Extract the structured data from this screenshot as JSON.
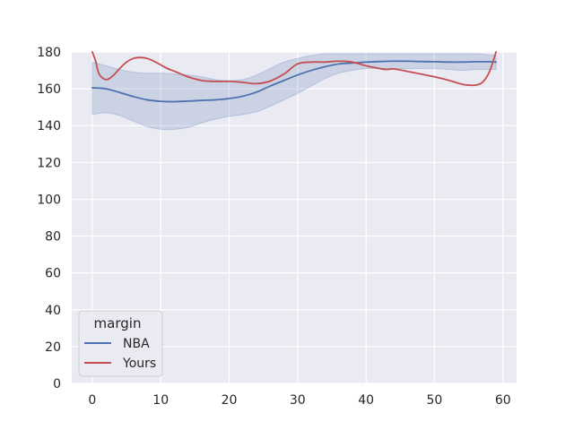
{
  "chart_data": {
    "type": "line",
    "title": "",
    "xlabel": "",
    "ylabel": "",
    "xlim": [
      -3,
      62
    ],
    "ylim": [
      0,
      180
    ],
    "x_ticks": [
      0,
      10,
      20,
      30,
      40,
      50,
      60
    ],
    "y_ticks": [
      0,
      20,
      40,
      60,
      80,
      100,
      120,
      140,
      160,
      180
    ],
    "grid": true,
    "legend": {
      "title": "margin",
      "position": "lower-left"
    },
    "series": [
      {
        "name": "NBA",
        "color": "#4c72b0",
        "x": [
          0,
          2,
          4,
          6,
          8,
          10,
          12,
          14,
          16,
          18,
          20,
          22,
          24,
          26,
          28,
          30,
          32,
          34,
          36,
          38,
          40,
          42,
          44,
          46,
          48,
          50,
          52,
          54,
          56,
          58,
          59
        ],
        "values": [
          160.5,
          160,
          158,
          155.8,
          154,
          153.2,
          153,
          153.3,
          153.7,
          154,
          154.7,
          156,
          158.2,
          161.5,
          164.5,
          167.5,
          170,
          172,
          173.5,
          174,
          174.5,
          174.8,
          175,
          175,
          174.8,
          174.7,
          174.5,
          174.5,
          174.7,
          174.7,
          174.5
        ],
        "ci_upper": [
          174.5,
          172.5,
          170.5,
          169,
          168.5,
          168.5,
          168,
          167.5,
          166.5,
          165,
          164.5,
          165,
          167.5,
          171,
          174.5,
          176.5,
          178,
          179,
          179,
          179,
          179,
          179,
          179,
          179,
          179,
          179,
          179,
          179,
          179,
          178.5,
          178
        ],
        "ci_lower": [
          146,
          147,
          145.5,
          142.5,
          139.5,
          138,
          138,
          139,
          141.5,
          143.5,
          145,
          146,
          147.5,
          150.5,
          154,
          157.5,
          161.5,
          165.5,
          168.5,
          170,
          171,
          171,
          171,
          171,
          171,
          171,
          170.5,
          170,
          170.5,
          170.5,
          170.5
        ]
      },
      {
        "name": "Yours",
        "color": "#c44e52",
        "x": [
          0,
          0.5,
          1,
          2,
          3,
          4,
          5,
          6,
          7,
          8,
          9,
          10,
          11,
          12,
          14,
          16,
          18,
          20,
          22,
          24,
          26,
          28,
          30,
          32,
          34,
          36,
          38,
          40,
          42,
          43,
          44,
          46,
          48,
          50,
          52,
          54,
          55,
          56,
          57,
          58,
          59
        ],
        "values": [
          180,
          175,
          168,
          165,
          167,
          171,
          174.5,
          176.5,
          177,
          176.5,
          175,
          173,
          171,
          169.5,
          166.5,
          164.5,
          164,
          164,
          163.5,
          162.8,
          164.2,
          168,
          173.5,
          174.5,
          174.5,
          175,
          174.5,
          172.5,
          171,
          170.5,
          170.8,
          169.5,
          168,
          166.5,
          164.7,
          162.5,
          162,
          162,
          163.5,
          169,
          180
        ]
      }
    ]
  }
}
